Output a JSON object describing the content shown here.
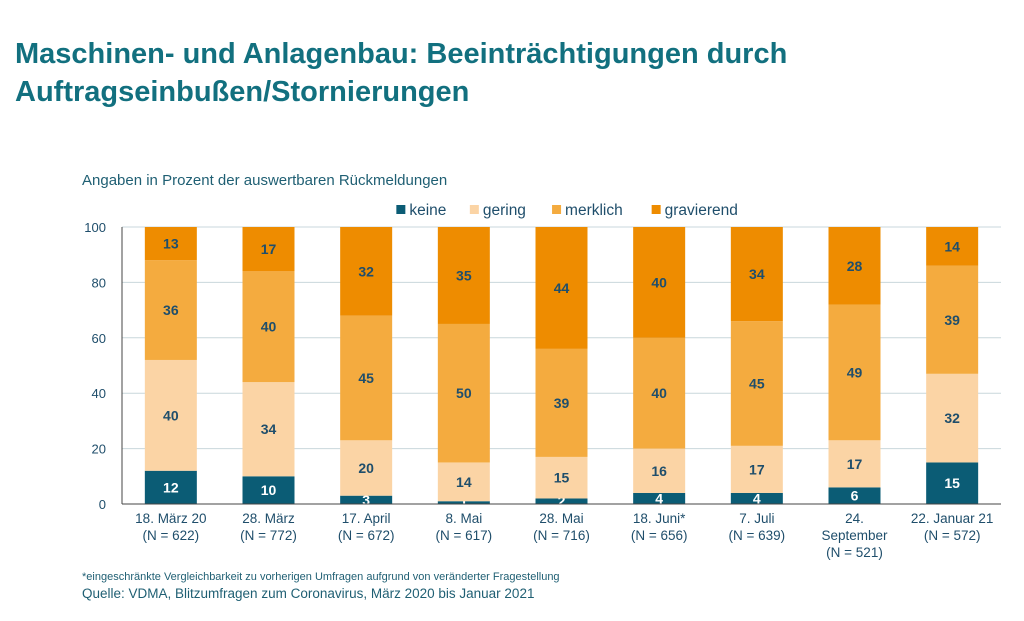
{
  "title_lines": [
    "Maschinen- und Anlagenbau: Beeinträchtigungen durch",
    "Auftragseinbußen/Stornierungen"
  ],
  "subtitle": "Angaben in Prozent der auswertbaren Rückmeldungen",
  "footnote": "*eingeschränkte Vergleichbarkeit zu vorherigen Umfragen aufgrund von veränderter Fragestellung",
  "source": "Quelle: VDMA, Blitzumfragen zum Coronavirus, März 2020 bis Januar 2021",
  "colors": {
    "keine": "#0b5c75",
    "gering": "#fbd4a5",
    "merklich": "#f4ab3f",
    "gravierend": "#ee8c00",
    "label": "#1f4e6b",
    "grid": "#c9d7dc",
    "axis": "#444444"
  },
  "chart_data": {
    "type": "bar",
    "stacked": true,
    "categories": [
      [
        "18. März 20",
        "(N = 622)"
      ],
      [
        "28. März",
        "(N = 772)"
      ],
      [
        "17. April",
        "(N = 672)"
      ],
      [
        "8. Mai",
        "(N = 617)"
      ],
      [
        "28. Mai",
        "(N = 716)"
      ],
      [
        "18. Juni*",
        "(N = 656)"
      ],
      [
        "7. Juli",
        "(N = 639)"
      ],
      [
        "24.",
        "September",
        "(N = 521)"
      ],
      [
        "22. Januar 21",
        "(N = 572)"
      ]
    ],
    "series": [
      {
        "name": "keine",
        "values": [
          12,
          10,
          3,
          1,
          2,
          4,
          4,
          6,
          15
        ]
      },
      {
        "name": "gering",
        "values": [
          40,
          34,
          20,
          14,
          15,
          16,
          17,
          17,
          32
        ]
      },
      {
        "name": "merklich",
        "values": [
          36,
          40,
          45,
          50,
          39,
          40,
          45,
          49,
          39
        ]
      },
      {
        "name": "gravierend",
        "values": [
          13,
          17,
          32,
          35,
          44,
          40,
          34,
          28,
          14
        ]
      }
    ],
    "yticks": [
      0,
      20,
      40,
      60,
      80,
      100
    ],
    "ylim": [
      0,
      100
    ],
    "legend_position": "top",
    "grid": true
  }
}
